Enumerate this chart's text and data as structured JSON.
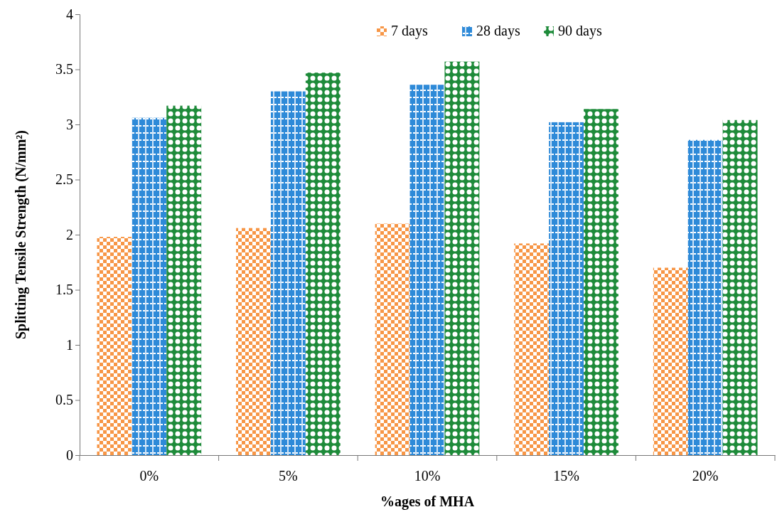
{
  "chart_data": {
    "type": "bar",
    "xlabel": "%ages of MHA",
    "ylabel": "Splitting Tensile Strength (N/mm²)",
    "categories": [
      "0%",
      "5%",
      "10%",
      "15%",
      "20%"
    ],
    "series": [
      {
        "name": "7 days",
        "color": "#f79646",
        "values": [
          1.98,
          2.06,
          2.1,
          1.92,
          1.7
        ]
      },
      {
        "name": "28 days",
        "color": "#2e8ad8",
        "values": [
          3.06,
          3.3,
          3.36,
          3.02,
          2.86
        ]
      },
      {
        "name": "90 days",
        "color": "#1e8b3a",
        "values": [
          3.17,
          3.47,
          3.57,
          3.14,
          3.04
        ]
      }
    ],
    "ylim": [
      0,
      4
    ],
    "yticks": [
      0,
      0.5,
      1,
      1.5,
      2,
      2.5,
      3,
      3.5,
      4
    ],
    "grid": false,
    "legend": "top right"
  }
}
